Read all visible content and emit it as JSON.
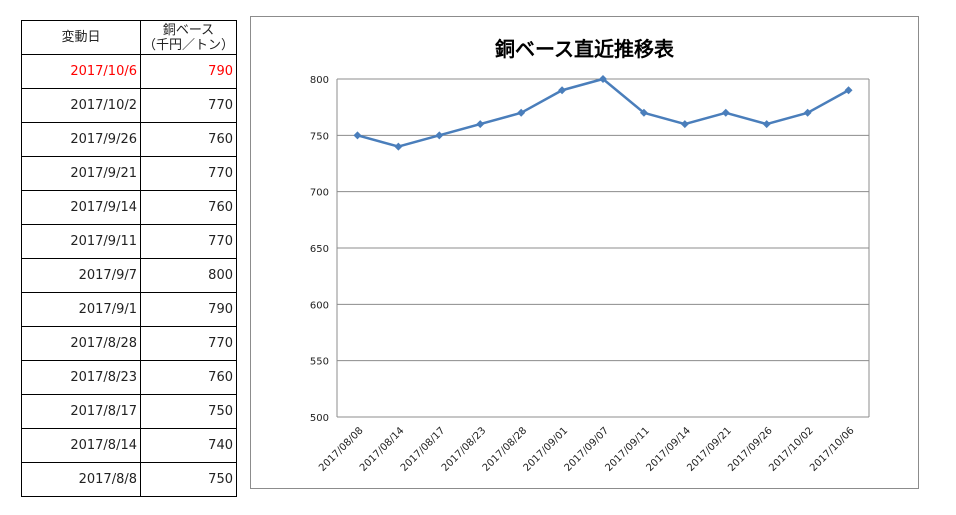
{
  "table": {
    "headers": [
      "変動日",
      "銅ベース",
      "（千円／トン）"
    ],
    "highlight_color": "#ff0000",
    "rows": [
      {
        "date": "2017/10/6",
        "value": "790",
        "highlight": true
      },
      {
        "date": "2017/10/2",
        "value": "770"
      },
      {
        "date": "2017/9/26",
        "value": "760"
      },
      {
        "date": "2017/9/21",
        "value": "770"
      },
      {
        "date": "2017/9/14",
        "value": "760"
      },
      {
        "date": "2017/9/11",
        "value": "770"
      },
      {
        "date": "2017/9/7",
        "value": "800"
      },
      {
        "date": "2017/9/1",
        "value": "790"
      },
      {
        "date": "2017/8/28",
        "value": "770"
      },
      {
        "date": "2017/8/23",
        "value": "760"
      },
      {
        "date": "2017/8/17",
        "value": "750"
      },
      {
        "date": "2017/8/14",
        "value": "740"
      },
      {
        "date": "2017/8/8",
        "value": "750"
      }
    ]
  },
  "chart_data": {
    "type": "line",
    "title": "銅ベース直近推移表",
    "x": [
      "2017/08/08",
      "2017/08/14",
      "2017/08/17",
      "2017/08/23",
      "2017/08/28",
      "2017/09/01",
      "2017/09/07",
      "2017/09/11",
      "2017/09/14",
      "2017/09/21",
      "2017/09/26",
      "2017/10/02",
      "2017/10/06"
    ],
    "series": [
      {
        "values": [
          750,
          740,
          750,
          760,
          770,
          790,
          800,
          770,
          760,
          770,
          760,
          770,
          790
        ],
        "color": "#4a7ebb",
        "marker": "diamond"
      }
    ],
    "yticks": [
      500,
      550,
      600,
      650,
      700,
      750,
      800
    ],
    "ylim": [
      500,
      800
    ],
    "grid": "horizontal",
    "legend": "none"
  }
}
